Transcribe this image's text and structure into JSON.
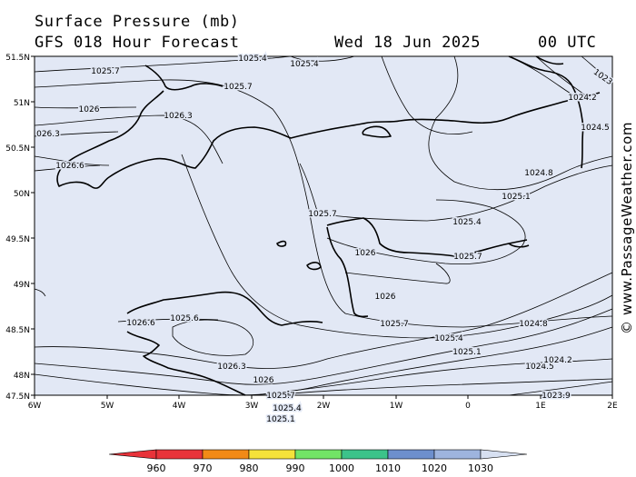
{
  "header": {
    "title": "Surface Pressure (mb)",
    "subtitle": "GFS 018 Hour Forecast",
    "valid_date": "Wed 18 Jun 2025",
    "run_time": "00 UTC"
  },
  "credit": "© www.PassageWeather.com",
  "map": {
    "background_color": "#e2e8f5",
    "latitude_labels": [
      "51.5N",
      "51N",
      "50.5N",
      "50N",
      "49.5N",
      "49N",
      "48.5N",
      "48N",
      "47.5N"
    ],
    "longitude_labels": [
      "6W",
      "5W",
      "4W",
      "3W",
      "2W",
      "1W",
      "0",
      "1E",
      "2E"
    ],
    "isobar_labels": [
      "1025.7",
      "1025.4",
      "1025.7",
      "1026",
      "1026.3",
      "026.3",
      "1026.6",
      "1025.7",
      "1024.2",
      "1024.5",
      "1024.8",
      "1025.1",
      "1025.4",
      "1025.7",
      "1026",
      "1026",
      "1025.7",
      "1026.6",
      "1025.6",
      "1026.3",
      "1026",
      "1025.7",
      "1025.4",
      "1025.1",
      "1025.4",
      "1025.1",
      "1024.8",
      "1024.5",
      "1024.2",
      "1023.9",
      "1025.4",
      "1023"
    ]
  },
  "colorbar": {
    "labels": [
      "960",
      "970",
      "980",
      "990",
      "1000",
      "1010",
      "1020",
      "1030"
    ],
    "colors": [
      "#e8333a",
      "#f28a16",
      "#f5e23a",
      "#72e466",
      "#3cc38a",
      "#6d8fcd",
      "#9eb4de",
      "#d7e0f1"
    ]
  }
}
